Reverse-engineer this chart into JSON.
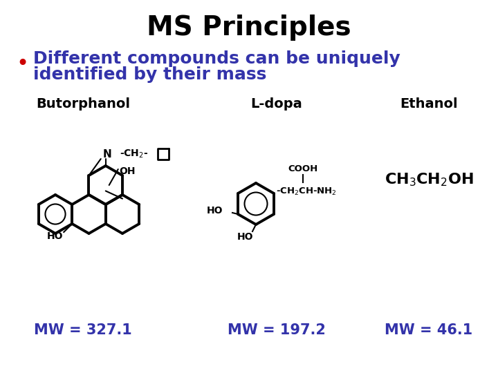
{
  "title": "MS Principles",
  "title_fontsize": 28,
  "title_fontweight": "bold",
  "title_color": "#000000",
  "bullet_text_line1": "Different compounds can be uniquely",
  "bullet_text_line2": "identified by their mass",
  "bullet_color": "#3333aa",
  "bullet_dot_color": "#cc0000",
  "bullet_fontsize": 18,
  "compound1_name": "Butorphanol",
  "compound2_name": "L-dopa",
  "compound3_name": "Ethanol",
  "compound1_mw": "MW = 327.1",
  "compound2_mw": "MW = 197.2",
  "compound3_mw": "MW = 46.1",
  "compound_name_fontsize": 14,
  "mw_fontsize": 15,
  "mw_color": "#3333aa",
  "bg_color": "#ffffff",
  "structure_color": "#000000",
  "lw_thin": 1.5,
  "lw_thick": 2.8
}
